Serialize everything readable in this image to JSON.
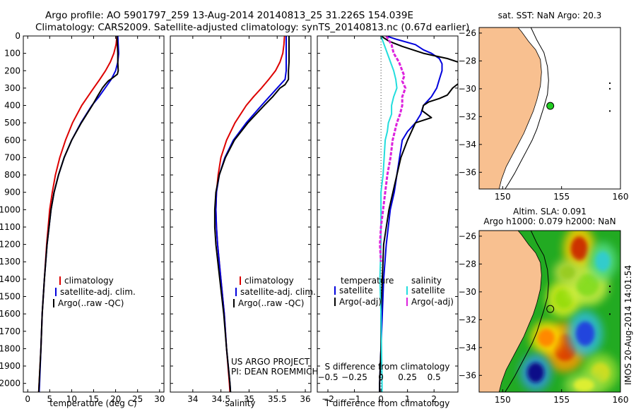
{
  "header": {
    "line1": "Argo profile: AO 5901797_259 13-Aug-2014 20140813_25 31.226S 154.039E",
    "line2": "Climatology: CARS2009. Satellite-adjusted climatology: synTS_20140813.nc (0.67d earlier)"
  },
  "colors": {
    "climatology": "#dd0000",
    "satellite": "#0000dd",
    "argo": "#000000",
    "satellite_salinity": "#22dddd",
    "argo_salinity": "#dd22dd",
    "land": "#f8c090",
    "sea_map1": "#ffffff",
    "float_marker": "#22cc22"
  },
  "annotations": {
    "project_line1": "US ARGO PROJECT",
    "project_line2": "PI: DEAN ROEMMICH",
    "side_stamp": "IMOS 20-Aug-2014 14:01:54"
  },
  "chart_data": [
    {
      "type": "line",
      "xlabel": "temperature (deg C)",
      "ylabel": "",
      "xlim": [
        -1,
        31
      ],
      "ylim": [
        2050,
        0
      ],
      "x_ticks": [
        0,
        5,
        10,
        15,
        20,
        25,
        30
      ],
      "y_ticks": [
        0,
        100,
        200,
        300,
        400,
        500,
        600,
        700,
        800,
        900,
        1000,
        1100,
        1200,
        1300,
        1400,
        1500,
        1600,
        1700,
        1800,
        1900,
        2000
      ],
      "legend": [
        "climatology",
        "satellite-adj. clim.",
        "Argo(..raw -QC)"
      ],
      "legend_position": "lower-right",
      "series": [
        {
          "name": "climatology",
          "depth": [
            0,
            50,
            100,
            150,
            200,
            250,
            300,
            400,
            500,
            600,
            700,
            800,
            900,
            1000,
            1200,
            1400,
            1600,
            1800,
            2000,
            2050
          ],
          "values": [
            20.3,
            20.1,
            19.6,
            18.8,
            17.7,
            16.4,
            15.0,
            12.3,
            10.2,
            8.6,
            7.3,
            6.3,
            5.6,
            5.0,
            4.3,
            3.8,
            3.3,
            3.0,
            2.6,
            2.5
          ]
        },
        {
          "name": "satellite-adj. clim.",
          "depth": [
            0,
            50,
            100,
            150,
            200,
            250,
            300,
            350,
            400,
            500,
            600,
            700,
            800,
            900,
            1000,
            1200,
            1400,
            1600,
            1800,
            2000,
            2050
          ],
          "values": [
            20.5,
            20.6,
            20.7,
            20.5,
            20.0,
            19.0,
            17.6,
            16.2,
            14.6,
            12.1,
            10.0,
            8.3,
            7.0,
            6.0,
            5.3,
            4.4,
            3.8,
            3.3,
            3.0,
            2.7,
            2.6
          ]
        },
        {
          "name": "Argo(..raw -QC)",
          "depth": [
            0,
            50,
            100,
            150,
            200,
            220,
            240,
            260,
            280,
            300,
            350,
            400,
            500,
            600,
            700,
            800,
            900,
            1000,
            1200,
            1400,
            1600,
            1800,
            2000,
            2050
          ],
          "values": [
            20.3,
            20.4,
            20.5,
            20.5,
            20.6,
            20.4,
            19.4,
            18.3,
            17.6,
            17.0,
            15.8,
            14.7,
            12.2,
            10.0,
            8.3,
            7.0,
            6.0,
            5.3,
            4.4,
            3.8,
            3.3,
            3.0,
            2.6,
            2.5
          ]
        }
      ]
    },
    {
      "type": "line",
      "xlabel": "salinity",
      "xlim": [
        33.6,
        36.1
      ],
      "ylim": [
        2050,
        0
      ],
      "x_ticks": [
        34,
        34.5,
        35,
        35.5,
        36
      ],
      "legend": [
        "climatology",
        "satellite-adj. clim.",
        "Argo(..raw -QC)"
      ],
      "legend_position": "lower-right",
      "series": [
        {
          "name": "climatology",
          "depth": [
            0,
            50,
            100,
            150,
            200,
            250,
            300,
            350,
            400,
            500,
            600,
            700,
            800,
            900,
            1000,
            1100,
            1200,
            1400,
            1600,
            1800,
            2000,
            2050
          ],
          "values": [
            35.63,
            35.62,
            35.6,
            35.55,
            35.47,
            35.35,
            35.22,
            35.08,
            34.95,
            34.75,
            34.6,
            34.5,
            34.45,
            34.42,
            34.41,
            34.42,
            34.44,
            34.5,
            34.56,
            34.6,
            34.65,
            34.66
          ]
        },
        {
          "name": "satellite-adj. clim.",
          "depth": [
            0,
            50,
            100,
            150,
            200,
            250,
            300,
            350,
            400,
            500,
            600,
            700,
            800,
            900,
            1000,
            1100,
            1200,
            1400,
            1600,
            1800,
            2000,
            2050
          ],
          "values": [
            35.66,
            35.66,
            35.66,
            35.66,
            35.66,
            35.64,
            35.5,
            35.36,
            35.22,
            34.95,
            34.72,
            34.57,
            34.47,
            34.42,
            34.41,
            34.42,
            34.44,
            34.5,
            34.56,
            34.6,
            34.66,
            34.67
          ]
        },
        {
          "name": "Argo(..raw -QC)",
          "depth": [
            0,
            50,
            100,
            150,
            200,
            250,
            280,
            300,
            350,
            400,
            500,
            600,
            700,
            800,
            900,
            1000,
            1100,
            1200,
            1400,
            1600,
            1800,
            2000,
            2050
          ],
          "values": [
            35.71,
            35.71,
            35.71,
            35.71,
            35.7,
            35.7,
            35.64,
            35.55,
            35.42,
            35.27,
            34.98,
            34.74,
            34.58,
            34.47,
            34.41,
            34.39,
            34.39,
            34.41,
            34.48,
            34.55,
            34.6,
            34.66,
            34.67
          ]
        }
      ]
    },
    {
      "type": "line",
      "xlabel": "T difference from climatology",
      "x2label": "S difference from climatology",
      "xlim": [
        -2.4,
        2.9
      ],
      "x2lim": [
        -0.6,
        0.725
      ],
      "ylim": [
        2050,
        0
      ],
      "x_ticks": [
        -2,
        -1,
        0,
        1,
        2
      ],
      "x2_ticks": [
        -0.5,
        -0.25,
        0,
        0.25,
        0.5
      ],
      "legend_headers": [
        "temperature",
        "salinity"
      ],
      "legend": [
        "satellite",
        "Argo(-adj)",
        "satellite",
        "Argo(-adj)"
      ],
      "legend_position": "lower-center",
      "series": [
        {
          "name": "satellite",
          "quantity": "temperature",
          "depth": [
            0,
            20,
            50,
            80,
            100,
            130,
            160,
            200,
            250,
            300,
            350,
            400,
            450,
            500,
            550,
            600,
            700,
            800,
            900,
            1000,
            1200,
            1400,
            1600,
            1800,
            2000,
            2050
          ],
          "values": [
            0.2,
            0.6,
            1.3,
            1.6,
            1.9,
            2.2,
            2.3,
            2.3,
            2.2,
            2.1,
            1.9,
            1.6,
            1.5,
            1.3,
            1.0,
            0.8,
            0.7,
            0.6,
            0.5,
            0.35,
            0.2,
            0.1,
            0.05,
            0.0,
            -0.05,
            -0.05
          ]
        },
        {
          "name": "Argo(-adj)",
          "quantity": "temperature",
          "depth": [
            0,
            30,
            60,
            100,
            130,
            170,
            200,
            215,
            230,
            250,
            270,
            300,
            340,
            360,
            380,
            400,
            430,
            470,
            500,
            600,
            700,
            800,
            900,
            1000,
            1200,
            1400,
            1600,
            1800,
            2000,
            2050
          ],
          "values": [
            0.0,
            0.3,
            0.8,
            1.6,
            2.5,
            3.3,
            3.5,
            3.4,
            3.1,
            2.9,
            2.95,
            2.7,
            2.5,
            2.2,
            1.8,
            1.6,
            1.55,
            1.9,
            1.3,
            1.0,
            0.75,
            0.6,
            0.45,
            0.3,
            0.1,
            0.05,
            0.0,
            0.0,
            -0.05,
            -0.05
          ]
        },
        {
          "name": "satellite",
          "quantity": "salinity",
          "depth": [
            0,
            50,
            100,
            150,
            200,
            250,
            300,
            350,
            400,
            450,
            500,
            550,
            600,
            700,
            800,
            900,
            1000,
            1200,
            1400,
            1600,
            2000,
            2050
          ],
          "values": [
            0.0,
            0.03,
            0.06,
            0.09,
            0.12,
            0.14,
            0.15,
            0.12,
            0.1,
            0.1,
            0.07,
            0.06,
            0.04,
            0.03,
            0.02,
            0.0,
            0.0,
            0.0,
            -0.01,
            0.0,
            0.01,
            0.01
          ]
        },
        {
          "name": "Argo(-adj)",
          "quantity": "salinity",
          "depth": [
            0,
            50,
            100,
            150,
            200,
            230,
            260,
            300,
            350,
            400,
            450,
            500,
            600,
            700,
            800,
            900,
            1000,
            1100,
            1200,
            1300
          ],
          "values": [
            0.05,
            0.1,
            0.12,
            0.17,
            0.2,
            0.22,
            0.2,
            0.23,
            0.2,
            0.2,
            0.18,
            0.15,
            0.11,
            0.09,
            0.06,
            0.04,
            0.02,
            0.0,
            -0.01,
            0.0
          ]
        }
      ]
    },
    {
      "type": "scatter",
      "title": "sat. SST: NaN Argo: 20.3",
      "xlim": [
        148,
        160
      ],
      "ylim": [
        -37.2,
        -25.6
      ],
      "x_ticks": [
        150,
        155,
        160
      ],
      "y_ticks": [
        -26,
        -28,
        -30,
        -32,
        -34,
        -36
      ],
      "coast": {
        "lon": [
          151.3,
          151.6,
          152.2,
          152.8,
          153.2,
          153.3,
          153.2,
          152.9,
          152.6,
          152.2,
          151.8,
          151.3,
          150.8,
          150.3,
          149.9,
          149.7
        ],
        "lat": [
          -25.6,
          -25.9,
          -26.6,
          -27.2,
          -27.9,
          -28.8,
          -29.8,
          -30.8,
          -31.6,
          -32.4,
          -33.2,
          -34.0,
          -34.8,
          -35.6,
          -36.5,
          -37.2
        ]
      },
      "contour": {
        "lon": [
          152.4,
          152.9,
          153.5,
          153.8,
          153.9,
          153.8,
          153.5,
          153.2,
          152.9,
          152.5,
          152.0,
          151.5,
          151.0,
          150.5,
          150.2
        ],
        "lat": [
          -25.6,
          -26.5,
          -27.4,
          -28.4,
          -29.4,
          -30.4,
          -31.3,
          -32.1,
          -32.9,
          -33.7,
          -34.5,
          -35.3,
          -36.1,
          -36.8,
          -37.2
        ]
      },
      "islands": [
        {
          "lon": 159.1,
          "lat": -29.6
        },
        {
          "lon": 159.1,
          "lat": -30.0
        },
        {
          "lon": 159.1,
          "lat": -31.6
        }
      ],
      "float": {
        "lon": 154.04,
        "lat": -31.23
      }
    },
    {
      "type": "heatmap",
      "title_line1": "Altim. SLA: 0.091",
      "title_line2": "Argo h1000: 0.079 h2000: NaN",
      "xlim": [
        148,
        160
      ],
      "ylim": [
        -37.2,
        -25.6
      ],
      "x_ticks": [
        150,
        155,
        160
      ],
      "y_ticks": [
        -26,
        -28,
        -30,
        -32,
        -34,
        -36
      ],
      "field_background": "#22aa22",
      "blobs": [
        {
          "lon": 156.5,
          "lat": -26.9,
          "rx": 0.9,
          "ry": 1.1,
          "color": "#cc3300",
          "halo": "#ffcc00"
        },
        {
          "lon": 155.2,
          "lat": -30.5,
          "rx": 1.0,
          "ry": 0.9,
          "color": "#99dd11",
          "halo": "#ddee22"
        },
        {
          "lon": 157.2,
          "lat": -29.5,
          "rx": 1.2,
          "ry": 1.0,
          "color": "#88dd22",
          "halo": "#ccee44"
        },
        {
          "lon": 155.3,
          "lat": -34.0,
          "rx": 1.2,
          "ry": 1.2,
          "color": "#dd4400",
          "halo": "#ff9900"
        },
        {
          "lon": 153.7,
          "lat": -33.3,
          "rx": 0.9,
          "ry": 0.8,
          "color": "#ff8800",
          "halo": "#ffdd00"
        },
        {
          "lon": 157.0,
          "lat": -33.0,
          "rx": 1.0,
          "ry": 1.1,
          "color": "#2244dd",
          "halo": "#33bbdd"
        },
        {
          "lon": 152.8,
          "lat": -35.8,
          "rx": 0.9,
          "ry": 0.9,
          "color": "#111188",
          "halo": "#3399dd"
        },
        {
          "lon": 158.3,
          "lat": -35.8,
          "rx": 1.0,
          "ry": 0.9,
          "color": "#ccdd22",
          "halo": "#99dd33"
        },
        {
          "lon": 156.9,
          "lat": -36.7,
          "rx": 1.1,
          "ry": 0.6,
          "color": "#ddee33",
          "halo": "#99dd44"
        },
        {
          "lon": 158.5,
          "lat": -27.8,
          "rx": 0.8,
          "ry": 0.9,
          "color": "#33cccc",
          "halo": "#55dd88"
        },
        {
          "lon": 155.5,
          "lat": -28.6,
          "rx": 0.8,
          "ry": 0.6,
          "color": "#99cc22",
          "halo": "#bbdd44"
        }
      ],
      "coast_ref": "same as map 1",
      "float": {
        "lon": 154.04,
        "lat": -31.23
      }
    }
  ]
}
